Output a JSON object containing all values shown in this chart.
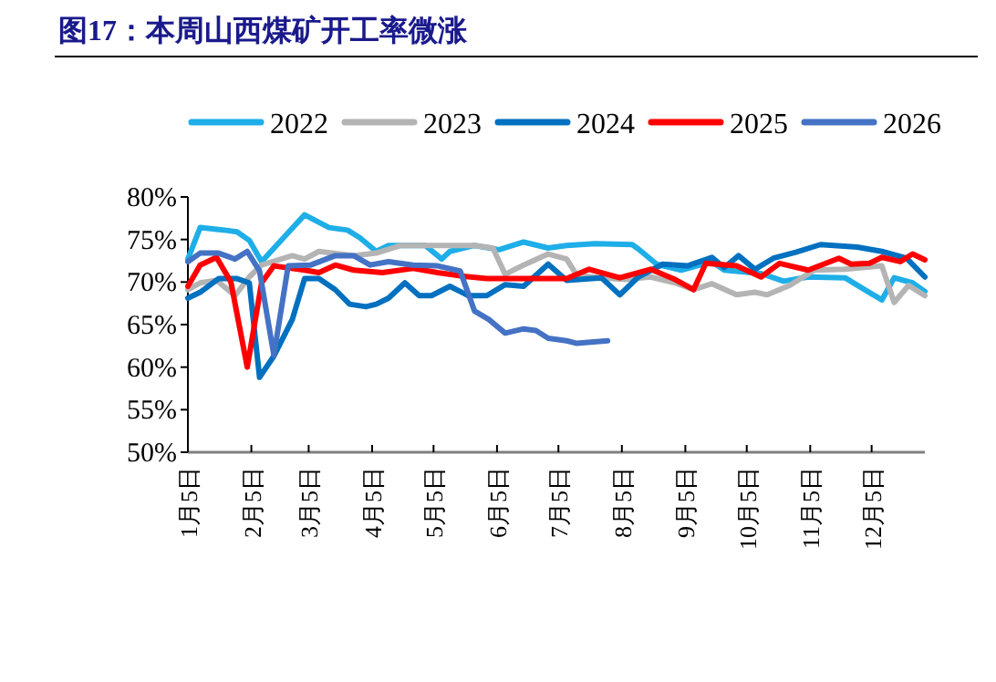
{
  "chart_data": {
    "type": "line",
    "title": "图17：本周山西煤矿开工率微涨",
    "xlim": [
      "--01-05",
      "--12-31"
    ],
    "xticks": [
      {
        "value": "--01-05",
        "label": "1月5日"
      },
      {
        "value": "--02-05",
        "label": "2月5日"
      },
      {
        "value": "--03-05",
        "label": "3月5日"
      },
      {
        "value": "--04-05",
        "label": "4月5日"
      },
      {
        "value": "--05-05",
        "label": "5月5日"
      },
      {
        "value": "--06-05",
        "label": "6月5日"
      },
      {
        "value": "--07-05",
        "label": "7月5日"
      },
      {
        "value": "--08-05",
        "label": "8月5日"
      },
      {
        "value": "--09-05",
        "label": "9月5日"
      },
      {
        "value": "--10-05",
        "label": "10月5日"
      },
      {
        "value": "--11-05",
        "label": "11月5日"
      },
      {
        "value": "--12-05",
        "label": "12月5日"
      }
    ],
    "ylim": [
      50,
      80
    ],
    "yticks": [
      {
        "value": 50,
        "label": "50%"
      },
      {
        "value": 55,
        "label": "55%"
      },
      {
        "value": 60,
        "label": "60%"
      },
      {
        "value": 65,
        "label": "65%"
      },
      {
        "value": 70,
        "label": "70%"
      },
      {
        "value": 75,
        "label": "75%"
      },
      {
        "value": 80,
        "label": "80%"
      }
    ],
    "grid": false,
    "legend": "top",
    "marker": "none",
    "line_style": "solid",
    "series": [
      {
        "name": "2022",
        "color": "#1eaee8",
        "x": [
          "--01-05",
          "--01-11",
          "--01-23",
          "--01-29",
          "--02-04",
          "--02-10",
          "--03-03",
          "--03-15",
          "--03-24",
          "--03-30",
          "--04-07",
          "--04-13",
          "--05-01",
          "--05-09",
          "--05-13",
          "--05-25",
          "--06-06",
          "--06-18",
          "--06-30",
          "--07-09",
          "--07-23",
          "--08-10",
          "--08-13",
          "--08-22",
          "--09-03",
          "--09-18",
          "--09-24",
          "--10-12",
          "--10-23",
          "--11-04",
          "--11-22",
          "--12-03",
          "--12-10",
          "--12-16",
          "--12-25",
          "--12-31"
        ],
        "values": [
          72.7,
          76.4,
          76.1,
          75.9,
          74.9,
          72.4,
          77.9,
          76.4,
          76.1,
          75.2,
          73.6,
          74.3,
          74.3,
          72.7,
          73.6,
          74.3,
          73.8,
          74.7,
          74.0,
          74.3,
          74.5,
          74.4,
          73.9,
          72.1,
          71.4,
          72.4,
          71.4,
          71.0,
          70.1,
          70.6,
          70.5,
          68.9,
          67.9,
          70.5,
          69.9,
          68.9
        ]
      },
      {
        "name": "2023",
        "color": "#b4b4b4",
        "x": [
          "--01-05",
          "--01-11",
          "--01-19",
          "--01-28",
          "--02-04",
          "--02-10",
          "--02-25",
          "--03-03",
          "--03-10",
          "--03-27",
          "--04-07",
          "--04-19",
          "--05-07",
          "--05-25",
          "--06-03",
          "--06-09",
          "--06-18",
          "--06-30",
          "--07-09",
          "--07-14",
          "--07-26",
          "--08-07",
          "--08-19",
          "--08-31",
          "--09-09",
          "--09-18",
          "--09-30",
          "--10-09",
          "--10-15",
          "--10-26",
          "--11-07",
          "--11-22",
          "--12-10",
          "--12-16",
          "--12-23",
          "--12-31"
        ],
        "values": [
          69.1,
          69.9,
          70.2,
          68.4,
          70.6,
          72.0,
          73.1,
          72.7,
          73.6,
          73.1,
          73.4,
          74.3,
          74.3,
          74.3,
          74.0,
          70.9,
          72.0,
          73.3,
          72.7,
          70.8,
          70.5,
          70.3,
          70.6,
          69.9,
          69.1,
          69.8,
          68.5,
          68.8,
          68.5,
          69.6,
          71.4,
          71.5,
          71.9,
          67.6,
          69.6,
          68.4
        ]
      },
      {
        "name": "2024",
        "color": "#0070c0",
        "x": [
          "--01-05",
          "--01-11",
          "--01-20",
          "--01-29",
          "--02-04",
          "--02-09",
          "--02-16",
          "--02-25",
          "--03-03",
          "--03-10",
          "--03-18",
          "--03-25",
          "--04-02",
          "--04-07",
          "--04-13",
          "--04-21",
          "--04-28",
          "--05-04",
          "--05-13",
          "--05-22",
          "--05-31",
          "--06-09",
          "--06-18",
          "--06-30",
          "--07-09",
          "--07-26",
          "--08-04",
          "--08-13",
          "--08-25",
          "--09-06",
          "--09-18",
          "--09-24",
          "--10-01",
          "--10-09",
          "--10-18",
          "--10-29",
          "--11-10",
          "--11-28",
          "--12-10",
          "--12-22",
          "--12-31"
        ],
        "values": [
          68.1,
          68.8,
          70.4,
          70.4,
          69.9,
          58.8,
          61.3,
          65.6,
          70.4,
          70.4,
          69.1,
          67.4,
          67.1,
          67.4,
          68.1,
          69.9,
          68.4,
          68.4,
          69.5,
          68.4,
          68.4,
          69.7,
          69.5,
          72.1,
          70.2,
          70.5,
          68.5,
          70.6,
          72.1,
          71.9,
          72.9,
          71.7,
          73.1,
          71.5,
          72.8,
          73.5,
          74.4,
          74.1,
          73.6,
          72.8,
          70.6
        ]
      },
      {
        "name": "2025",
        "color": "#ff0000",
        "x": [
          "--01-05",
          "--01-11",
          "--01-19",
          "--01-26",
          "--02-03",
          "--02-10",
          "--02-16",
          "--03-03",
          "--03-10",
          "--03-18",
          "--03-27",
          "--04-10",
          "--04-25",
          "--05-07",
          "--05-19",
          "--05-31",
          "--06-18",
          "--07-09",
          "--07-20",
          "--08-04",
          "--08-19",
          "--08-31",
          "--09-09",
          "--09-15",
          "--09-30",
          "--10-12",
          "--10-21",
          "--11-04",
          "--11-19",
          "--11-25",
          "--12-04",
          "--12-10",
          "--12-19",
          "--12-25",
          "--12-31"
        ],
        "values": [
          69.5,
          72.0,
          72.9,
          70.0,
          60.0,
          69.9,
          71.9,
          71.4,
          71.1,
          72.0,
          71.4,
          71.1,
          71.6,
          71.1,
          70.7,
          70.4,
          70.4,
          70.4,
          71.5,
          70.5,
          71.5,
          70.3,
          69.1,
          72.2,
          71.9,
          70.6,
          72.2,
          71.4,
          72.8,
          72.1,
          72.2,
          72.9,
          72.4,
          73.3,
          72.6
        ]
      },
      {
        "name": "2026",
        "color": "#4472c4",
        "x": [
          "--01-05",
          "--01-11",
          "--01-20",
          "--01-28",
          "--02-03",
          "--02-09",
          "--02-16",
          "--02-23",
          "--03-06",
          "--03-18",
          "--03-27",
          "--04-04",
          "--04-13",
          "--04-25",
          "--05-07",
          "--05-18",
          "--05-25",
          "--06-01",
          "--06-09",
          "--06-18",
          "--06-24",
          "--06-30",
          "--07-09",
          "--07-14",
          "--07-29"
        ],
        "values": [
          72.4,
          73.4,
          73.4,
          72.7,
          73.6,
          71.3,
          61.4,
          71.9,
          72.0,
          73.1,
          73.1,
          72.0,
          72.4,
          72.0,
          71.9,
          71.3,
          66.6,
          65.6,
          64.0,
          64.5,
          64.3,
          63.4,
          63.1,
          62.8,
          63.1
        ]
      }
    ]
  }
}
